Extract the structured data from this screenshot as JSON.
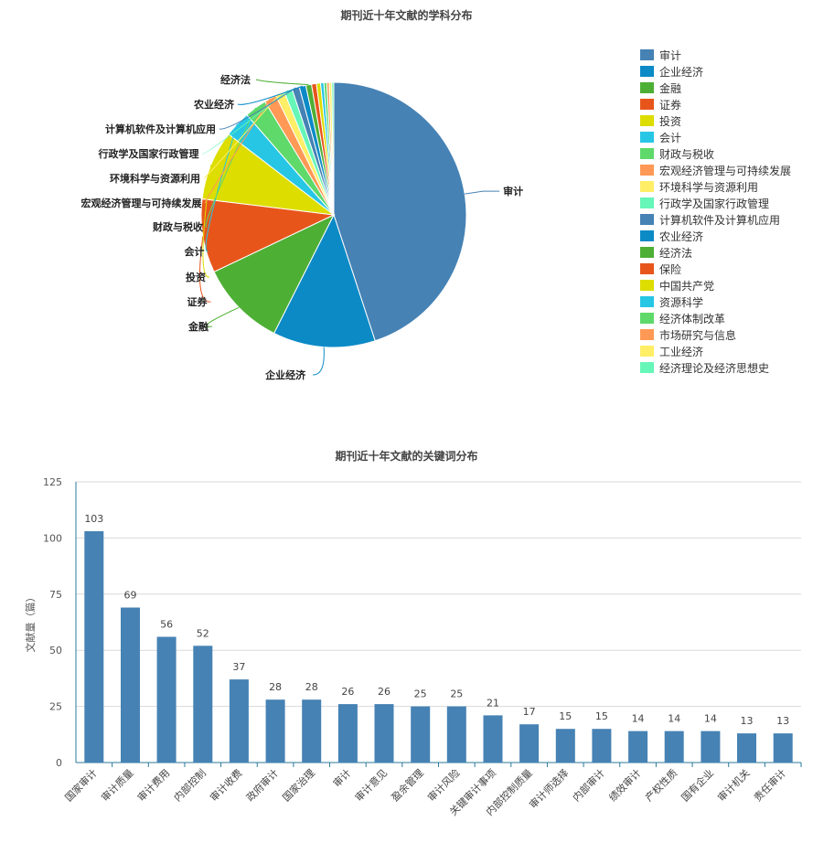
{
  "colors": {
    "palette": [
      "#4682B4",
      "#0B8AC6",
      "#4EAF35",
      "#E8551B",
      "#DDDD00",
      "#27C6E5",
      "#5ED96A",
      "#FF9955",
      "#FFEE66",
      "#66F6B8"
    ],
    "bar": "#4682B4",
    "axis": "#2B7A9B",
    "grid": "#D9D9D9"
  },
  "chart_data": [
    {
      "type": "pie",
      "title": "期刊近十年文献的学科分布",
      "legend_position": "right",
      "slices": [
        {
          "label": "审计",
          "value": 45.0
        },
        {
          "label": "企业经济",
          "value": 12.5
        },
        {
          "label": "金融",
          "value": 10.5
        },
        {
          "label": "证券",
          "value": 9.0
        },
        {
          "label": "投资",
          "value": 8.5
        },
        {
          "label": "会计",
          "value": 3.2
        },
        {
          "label": "财政与税收",
          "value": 2.7
        },
        {
          "label": "宏观经济管理与可持续发展",
          "value": 1.5
        },
        {
          "label": "环境科学与资源利用",
          "value": 1.1
        },
        {
          "label": "行政学及国家行政管理",
          "value": 1.0
        },
        {
          "label": "计算机软件及计算机应用",
          "value": 0.9
        },
        {
          "label": "农业经济",
          "value": 0.8
        },
        {
          "label": "经济法",
          "value": 0.7
        },
        {
          "label": "保险",
          "value": 0.6
        },
        {
          "label": "中国共产党",
          "value": 0.5
        },
        {
          "label": "资源科学",
          "value": 0.4
        },
        {
          "label": "经济体制改革",
          "value": 0.35
        },
        {
          "label": "市场研究与信息",
          "value": 0.3
        },
        {
          "label": "工业经济",
          "value": 0.3
        },
        {
          "label": "经济理论及经济思想史",
          "value": 0.25
        }
      ]
    },
    {
      "type": "bar",
      "title": "期刊近十年文献的关键词分布",
      "ylabel": "文献量（篇）",
      "xlabel": "",
      "ylim": [
        0,
        125
      ],
      "yticks": [
        0,
        25,
        50,
        75,
        100,
        125
      ],
      "grid": true,
      "categories": [
        "国家审计",
        "审计质量",
        "审计费用",
        "内部控制",
        "审计收费",
        "政府审计",
        "国家治理",
        "审计",
        "审计意见",
        "盈余管理",
        "审计风险",
        "关键审计事项",
        "内部控制质量",
        "审计师选择",
        "内部审计",
        "绩效审计",
        "产权性质",
        "国有企业",
        "审计机关",
        "责任审计"
      ],
      "values": [
        103,
        69,
        56,
        52,
        37,
        28,
        28,
        26,
        26,
        25,
        25,
        21,
        17,
        15,
        15,
        14,
        14,
        14,
        13,
        13
      ]
    }
  ]
}
